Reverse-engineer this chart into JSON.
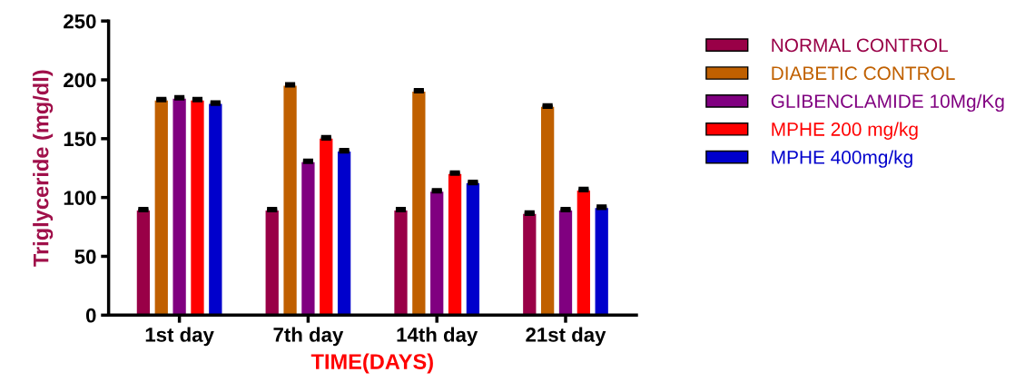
{
  "chart_data": {
    "type": "bar",
    "xlabel": "TIME(DAYS)",
    "ylabel": "Triglyceride (mg/dl)",
    "categories": [
      "1st day",
      "7th day",
      "14th day",
      "21st day"
    ],
    "ylim": [
      0,
      250
    ],
    "yticks": [
      0,
      50,
      100,
      150,
      200,
      250
    ],
    "grid": false,
    "legend": "right",
    "series": [
      {
        "name": "NORMAL CONTROL",
        "color": "#990047",
        "values": [
          89,
          89,
          89,
          86
        ],
        "errors": [
          1.5,
          1.5,
          1.5,
          1.5
        ]
      },
      {
        "name": "DIABETIC CONTROL",
        "color": "#c06000",
        "values": [
          182.5,
          195,
          190,
          177
        ],
        "errors": [
          1.5,
          1.5,
          1.5,
          1.5
        ]
      },
      {
        "name": "GLIBENCLAMIDE 10Mg/Kg",
        "color": "#800080",
        "values": [
          184,
          130,
          105,
          89
        ],
        "errors": [
          1.5,
          1.5,
          1.5,
          1.5
        ]
      },
      {
        "name": "MPHE 200 mg/kg",
        "color": "#ff0000",
        "values": [
          182.5,
          150,
          120,
          106
        ],
        "errors": [
          1.5,
          1.5,
          1.5,
          1.5
        ]
      },
      {
        "name": "MPHE 400mg/kg",
        "color": "#0000cc",
        "values": [
          179.5,
          139,
          112,
          91
        ],
        "errors": [
          1.5,
          1.5,
          1.5,
          1.5
        ]
      }
    ]
  }
}
